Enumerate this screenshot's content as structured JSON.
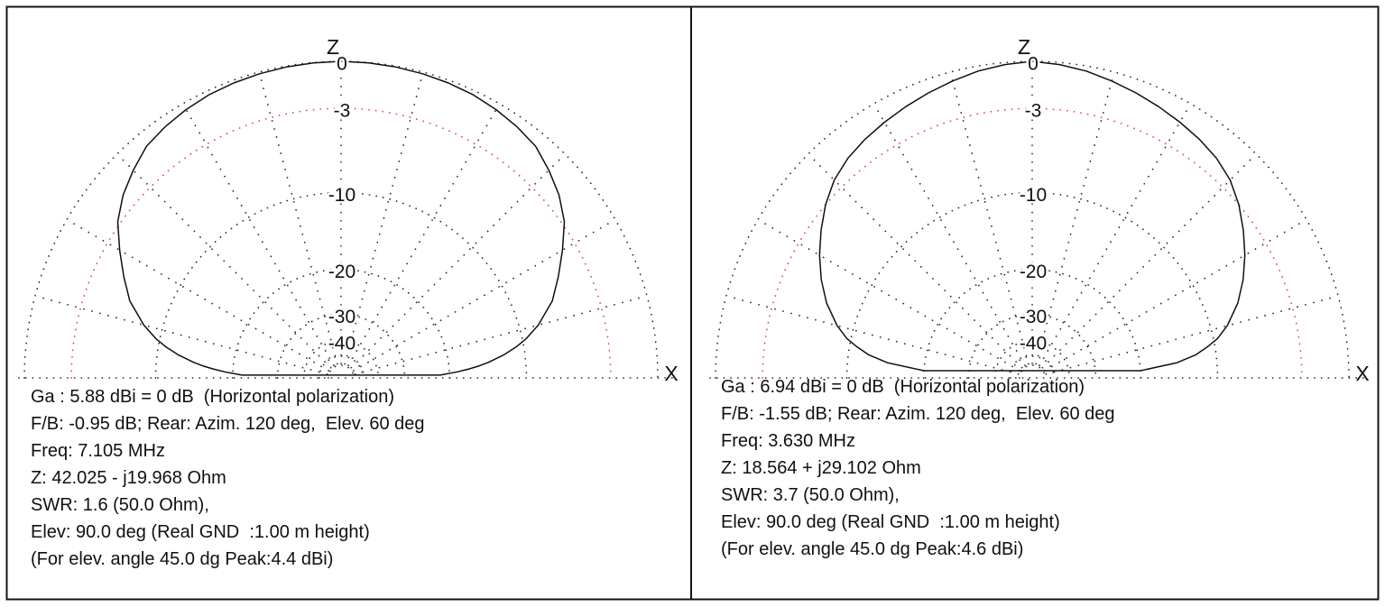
{
  "figure": {
    "background": "#ffffff",
    "frame_color": "#141414",
    "description": "Two antenna elevation radiation pattern plots (semicircular polar charts) side by side with result text below each"
  },
  "colors": {
    "pattern_curve": "#101010",
    "grid_dots": "#2b2b2b",
    "ring_minus3_red": "#e04545",
    "text": "#101010"
  },
  "axes": {
    "vertical": "Z",
    "horizontal": "X"
  },
  "grid": {
    "ring_labels": [
      "0",
      "-3",
      "-10",
      "-20",
      "-30",
      "-40"
    ],
    "rings_db": [
      0,
      -3,
      -10,
      -20,
      -30,
      -40,
      -50,
      -60
    ],
    "red_ring_db": -3,
    "radial_step_deg": 15,
    "radial_db_scale": 43
  },
  "chart_data": [
    {
      "type": "line",
      "plot_style": "polar-semicircle-elevation",
      "xlabel": "X",
      "zlabel": "Z",
      "x": "elevation_deg",
      "y": "gain_db_relative_to_max",
      "rings_db_labeled": [
        0,
        -3,
        -10,
        -20,
        -30,
        -40
      ],
      "symmetric_about_zenith": true,
      "pattern": {
        "elevation_deg": [
          1.6,
          3,
          4,
          5,
          6,
          8,
          10,
          12,
          15,
          20,
          25,
          30,
          35,
          40,
          45,
          50,
          55,
          60,
          65,
          70,
          75,
          80,
          85,
          90
        ],
        "gain_db": [
          -21.7,
          -18.7,
          -16.9,
          -15.4,
          -14.2,
          -12.3,
          -10.8,
          -9.6,
          -8.2,
          -6.4,
          -5.2,
          -4.0,
          -2.8,
          -2.0,
          -1.4,
          -0.85,
          -0.6,
          -0.4,
          -0.25,
          -0.16,
          -0.1,
          -0.05,
          -0.02,
          0
        ]
      },
      "metrics": {
        "gain_dbi": 5.88,
        "fb_db": -0.95,
        "rear_azim_deg": 120,
        "rear_elev_deg": 60,
        "freq_mhz": 7.105,
        "impedance_ohm": "42.025 - j19.968",
        "swr": 1.6,
        "swr_ref_ohm": 50.0,
        "elev_deg": 90.0,
        "gnd_height_m": 1.0,
        "peak_45deg_dbi": 4.4
      },
      "info_lines": [
        "Ga : 5.88 dBi = 0 dB  (Horizontal polarization)",
        "F/B: -0.95 dB; Rear: Azim. 120 deg,  Elev. 60 deg",
        "Freq: 7.105 MHz",
        "Z: 42.025 - j19.968 Ohm",
        "SWR: 1.6 (50.0 Ohm),",
        "Elev: 90.0 deg (Real GND  :1.00 m height)",
        "(For elev. angle 45.0 dg Peak:4.4 dBi)"
      ]
    },
    {
      "type": "line",
      "plot_style": "polar-semicircle-elevation",
      "xlabel": "X",
      "zlabel": "Z",
      "x": "elevation_deg",
      "y": "gain_db_relative_to_max",
      "rings_db_labeled": [
        0,
        -3,
        -10,
        -20,
        -30,
        -40
      ],
      "symmetric_about_zenith": true,
      "pattern": {
        "elevation_deg": [
          3.8,
          6,
          8,
          10,
          12,
          15,
          20,
          25,
          30,
          35,
          40,
          45,
          50,
          55,
          60,
          65,
          70,
          75,
          80,
          85,
          90
        ],
        "gain_db": [
          -20,
          -14.5,
          -12.2,
          -10.8,
          -9.6,
          -8.4,
          -6.9,
          -5.75,
          -4.75,
          -3.85,
          -3.0,
          -2.3,
          -1.85,
          -1.55,
          -1.3,
          -1.05,
          -0.8,
          -0.55,
          -0.3,
          -0.12,
          0
        ]
      },
      "metrics": {
        "gain_dbi": 6.94,
        "fb_db": -1.55,
        "rear_azim_deg": 120,
        "rear_elev_deg": 60,
        "freq_mhz": 3.63,
        "impedance_ohm": "18.564 + j29.102",
        "swr": 3.7,
        "swr_ref_ohm": 50.0,
        "elev_deg": 90.0,
        "gnd_height_m": 1.0,
        "peak_45deg_dbi": 4.6
      },
      "info_lines": [
        "Ga : 6.94 dBi = 0 dB  (Horizontal polarization)",
        "F/B: -1.55 dB; Rear: Azim. 120 deg,  Elev. 60 deg",
        "Freq: 3.630 MHz",
        "Z: 18.564 + j29.102 Ohm",
        "SWR: 3.7 (50.0 Ohm),",
        "Elev: 90.0 deg (Real GND  :1.00 m height)",
        "(For elev. angle 45.0 dg Peak:4.6 dBi)"
      ]
    }
  ]
}
